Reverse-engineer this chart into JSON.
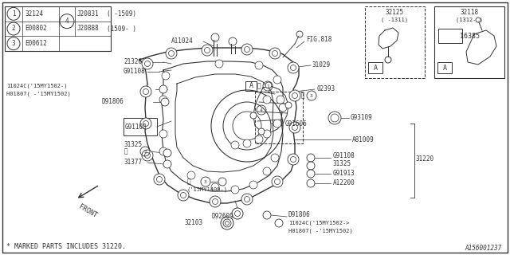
{
  "bg_color": "#ffffff",
  "line_color": "#333333",
  "footer_code": "A156001237",
  "footnote": "* MARKED PARTS INCLUDES 31220.",
  "parts_table": {
    "rows": [
      [
        "1",
        "32124"
      ],
      [
        "2",
        "E00802"
      ],
      [
        "3",
        "E00612"
      ]
    ],
    "circle4_row": 1,
    "right": [
      [
        "J20831",
        "( -1509)"
      ],
      [
        "J20888",
        "(1509- )"
      ]
    ]
  }
}
